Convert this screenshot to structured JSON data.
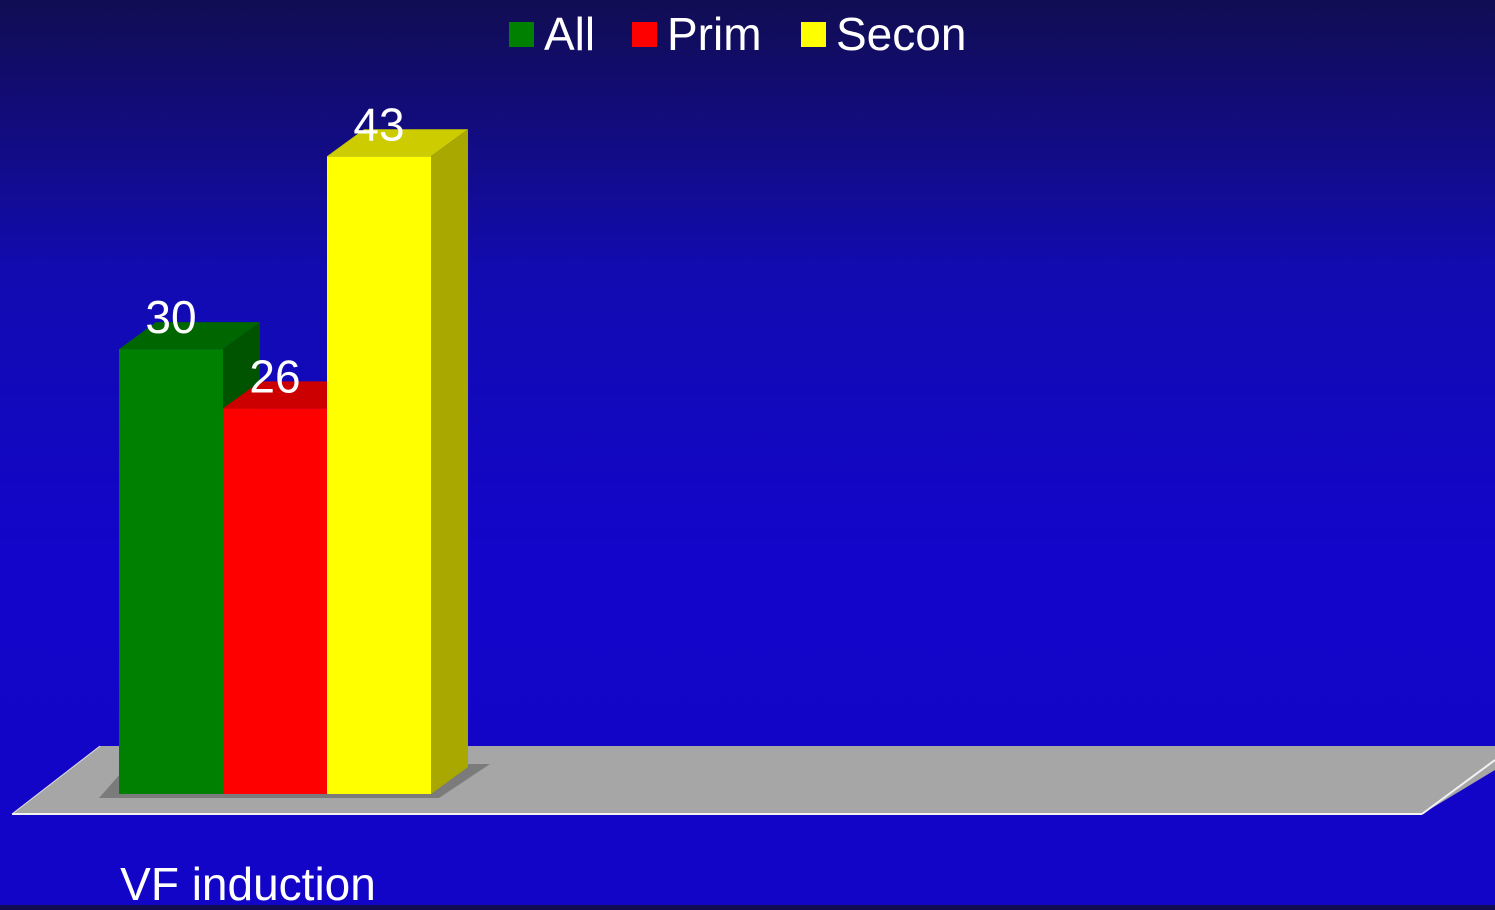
{
  "chart_data": {
    "type": "bar",
    "categories": [
      "VF induction"
    ],
    "series": [
      {
        "name": "All",
        "values": [
          30
        ],
        "color": "#008000"
      },
      {
        "name": "Prim",
        "values": [
          26
        ],
        "color": "#ff0000"
      },
      {
        "name": "Secon",
        "values": [
          43
        ],
        "color": "#ffff00"
      }
    ],
    "title": "",
    "xlabel": "",
    "ylabel": "",
    "ylim": [
      0,
      50
    ],
    "grid": false,
    "legend_position": "top-center",
    "style": "3d",
    "floor_color": "#a6a6a6"
  }
}
